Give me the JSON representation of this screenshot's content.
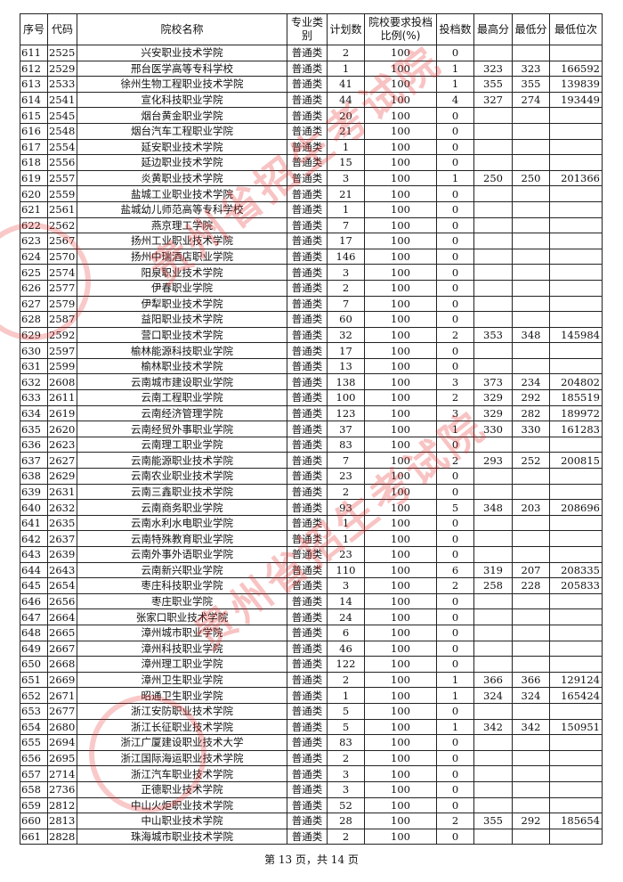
{
  "table": {
    "headers": [
      "序号",
      "代码",
      "院校名称",
      "专业类别",
      "计划数",
      "院校要求投档比例(%)",
      "投档数",
      "最高分",
      "最低分",
      "最低位次"
    ],
    "rows": [
      [
        "611",
        "2525",
        "兴安职业技术学院",
        "普通类",
        "2",
        "100",
        "0",
        "",
        "",
        ""
      ],
      [
        "612",
        "2529",
        "邢台医学高等专科学校",
        "普通类",
        "1",
        "100",
        "1",
        "323",
        "323",
        "166592"
      ],
      [
        "613",
        "2533",
        "徐州生物工程职业技术学院",
        "普通类",
        "41",
        "100",
        "1",
        "355",
        "355",
        "139839"
      ],
      [
        "614",
        "2541",
        "宣化科技职业学院",
        "普通类",
        "44",
        "100",
        "4",
        "327",
        "274",
        "193449"
      ],
      [
        "615",
        "2545",
        "烟台黄金职业学院",
        "普通类",
        "20",
        "100",
        "0",
        "",
        "",
        ""
      ],
      [
        "616",
        "2548",
        "烟台汽车工程职业学院",
        "普通类",
        "21",
        "100",
        "0",
        "",
        "",
        ""
      ],
      [
        "617",
        "2554",
        "延安职业技术学院",
        "普通类",
        "1",
        "100",
        "0",
        "",
        "",
        ""
      ],
      [
        "618",
        "2556",
        "延边职业技术学院",
        "普通类",
        "15",
        "100",
        "0",
        "",
        "",
        ""
      ],
      [
        "619",
        "2557",
        "炎黄职业技术学院",
        "普通类",
        "3",
        "100",
        "1",
        "250",
        "250",
        "201366"
      ],
      [
        "620",
        "2559",
        "盐城工业职业技术学院",
        "普通类",
        "21",
        "100",
        "0",
        "",
        "",
        ""
      ],
      [
        "621",
        "2561",
        "盐城幼儿师范高等专科学校",
        "普通类",
        "1",
        "100",
        "0",
        "",
        "",
        ""
      ],
      [
        "622",
        "2562",
        "燕京理工学院",
        "普通类",
        "7",
        "100",
        "0",
        "",
        "",
        ""
      ],
      [
        "623",
        "2567",
        "扬州工业职业技术学院",
        "普通类",
        "17",
        "100",
        "0",
        "",
        "",
        ""
      ],
      [
        "624",
        "2570",
        "扬州中瑞酒店职业学院",
        "普通类",
        "146",
        "100",
        "0",
        "",
        "",
        ""
      ],
      [
        "625",
        "2574",
        "阳泉职业技术学院",
        "普通类",
        "3",
        "100",
        "0",
        "",
        "",
        ""
      ],
      [
        "626",
        "2577",
        "伊春职业学院",
        "普通类",
        "2",
        "100",
        "0",
        "",
        "",
        ""
      ],
      [
        "627",
        "2579",
        "伊犁职业技术学院",
        "普通类",
        "7",
        "100",
        "0",
        "",
        "",
        ""
      ],
      [
        "628",
        "2587",
        "益阳职业技术学院",
        "普通类",
        "60",
        "100",
        "0",
        "",
        "",
        ""
      ],
      [
        "629",
        "2592",
        "营口职业技术学院",
        "普通类",
        "32",
        "100",
        "2",
        "353",
        "348",
        "145984"
      ],
      [
        "630",
        "2597",
        "榆林能源科技职业学院",
        "普通类",
        "17",
        "100",
        "0",
        "",
        "",
        ""
      ],
      [
        "631",
        "2599",
        "榆林职业技术学院",
        "普通类",
        "13",
        "100",
        "0",
        "",
        "",
        ""
      ],
      [
        "632",
        "2608",
        "云南城市建设职业学院",
        "普通类",
        "138",
        "100",
        "3",
        "373",
        "234",
        "204802"
      ],
      [
        "633",
        "2611",
        "云南工程职业学院",
        "普通类",
        "100",
        "100",
        "2",
        "329",
        "292",
        "185519"
      ],
      [
        "634",
        "2619",
        "云南经济管理学院",
        "普通类",
        "123",
        "100",
        "3",
        "329",
        "282",
        "189972"
      ],
      [
        "635",
        "2620",
        "云南经贸外事职业学院",
        "普通类",
        "37",
        "100",
        "1",
        "330",
        "330",
        "161283"
      ],
      [
        "636",
        "2623",
        "云南理工职业学院",
        "普通类",
        "83",
        "100",
        "0",
        "",
        "",
        ""
      ],
      [
        "637",
        "2627",
        "云南能源职业技术学院",
        "普通类",
        "7",
        "100",
        "2",
        "293",
        "252",
        "200815"
      ],
      [
        "638",
        "2629",
        "云南农业职业技术学院",
        "普通类",
        "23",
        "100",
        "0",
        "",
        "",
        ""
      ],
      [
        "639",
        "2631",
        "云南三鑫职业技术学院",
        "普通类",
        "2",
        "100",
        "0",
        "",
        "",
        ""
      ],
      [
        "640",
        "2632",
        "云南商务职业学院",
        "普通类",
        "93",
        "100",
        "5",
        "348",
        "203",
        "208696"
      ],
      [
        "641",
        "2635",
        "云南水利水电职业学院",
        "普通类",
        "1",
        "100",
        "0",
        "",
        "",
        ""
      ],
      [
        "642",
        "2637",
        "云南特殊教育职业学院",
        "普通类",
        "1",
        "100",
        "0",
        "",
        "",
        ""
      ],
      [
        "643",
        "2639",
        "云南外事外语职业学院",
        "普通类",
        "23",
        "100",
        "0",
        "",
        "",
        ""
      ],
      [
        "644",
        "2643",
        "云南新兴职业学院",
        "普通类",
        "110",
        "100",
        "6",
        "319",
        "207",
        "208335"
      ],
      [
        "645",
        "2654",
        "枣庄科技职业学院",
        "普通类",
        "3",
        "100",
        "2",
        "258",
        "228",
        "205833"
      ],
      [
        "646",
        "2656",
        "枣庄职业学院",
        "普通类",
        "14",
        "100",
        "0",
        "",
        "",
        ""
      ],
      [
        "647",
        "2664",
        "张家口职业技术学院",
        "普通类",
        "24",
        "100",
        "0",
        "",
        "",
        ""
      ],
      [
        "648",
        "2665",
        "漳州城市职业学院",
        "普通类",
        "6",
        "100",
        "0",
        "",
        "",
        ""
      ],
      [
        "649",
        "2667",
        "漳州科技职业学院",
        "普通类",
        "46",
        "100",
        "0",
        "",
        "",
        ""
      ],
      [
        "650",
        "2668",
        "漳州理工职业学院",
        "普通类",
        "122",
        "100",
        "0",
        "",
        "",
        ""
      ],
      [
        "651",
        "2669",
        "漳州卫生职业学院",
        "普通类",
        "2",
        "100",
        "1",
        "366",
        "366",
        "129124"
      ],
      [
        "652",
        "2671",
        "昭通卫生职业学院",
        "普通类",
        "1",
        "100",
        "1",
        "324",
        "324",
        "165424"
      ],
      [
        "653",
        "2677",
        "浙江安防职业技术学院",
        "普通类",
        "5",
        "100",
        "0",
        "",
        "",
        ""
      ],
      [
        "654",
        "2680",
        "浙江长征职业技术学院",
        "普通类",
        "5",
        "100",
        "1",
        "342",
        "342",
        "150951"
      ],
      [
        "655",
        "2694",
        "浙江广厦建设职业技术大学",
        "普通类",
        "83",
        "100",
        "0",
        "",
        "",
        ""
      ],
      [
        "656",
        "2695",
        "浙江国际海运职业技术学院",
        "普通类",
        "2",
        "100",
        "0",
        "",
        "",
        ""
      ],
      [
        "657",
        "2714",
        "浙江汽车职业技术学院",
        "普通类",
        "3",
        "100",
        "0",
        "",
        "",
        ""
      ],
      [
        "658",
        "2736",
        "正德职业技术学院",
        "普通类",
        "3",
        "100",
        "0",
        "",
        "",
        ""
      ],
      [
        "659",
        "2812",
        "中山火炬职业技术学院",
        "普通类",
        "52",
        "100",
        "0",
        "",
        "",
        ""
      ],
      [
        "660",
        "2813",
        "中山职业技术学院",
        "普通类",
        "28",
        "100",
        "2",
        "355",
        "292",
        "185654"
      ],
      [
        "661",
        "2828",
        "珠海城市职业技术学院",
        "普通类",
        "2",
        "100",
        "0",
        "",
        "",
        ""
      ]
    ]
  },
  "footer": "第 13 页，共 14 页",
  "watermark": {
    "text": "贵州省招生考试院",
    "color": "#e62828"
  }
}
